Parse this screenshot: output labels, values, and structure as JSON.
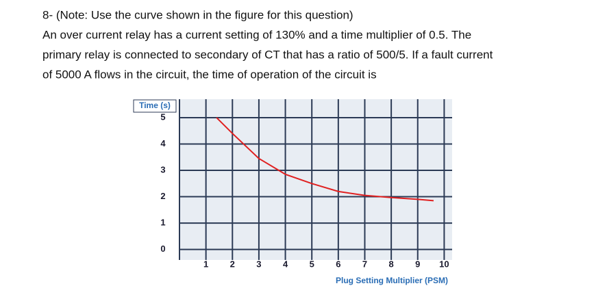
{
  "question": {
    "lines": [
      "8- (Note: Use the curve shown in the figure for this question)",
      "An over current relay has a current setting of 130% and a time multiplier of 0.5. The",
      "primary relay is connected to secondary of CT that has a ratio of 500/5. If a fault current",
      "of 5000 A flows in the circuit, the time of operation of the circuit is"
    ]
  },
  "chart_data": {
    "type": "line",
    "y_label": "Time (s)",
    "x_label": "Plug Setting Multiplier (PSM)",
    "x": [
      1.4,
      2,
      3,
      4,
      5,
      6,
      7,
      8,
      9,
      9.6
    ],
    "series": [
      {
        "color": "#e02020",
        "values": [
          5,
          4.4,
          3.45,
          2.85,
          2.5,
          2.2,
          2.05,
          1.97,
          1.9,
          1.85
        ]
      }
    ],
    "xlim": [
      0,
      10.3
    ],
    "ylim": [
      -0.4,
      5.7
    ],
    "xticks": [
      1,
      2,
      3,
      4,
      5,
      6,
      7,
      8,
      9,
      10
    ],
    "yticks": [
      0,
      1,
      2,
      3,
      4,
      5
    ],
    "grid": true
  }
}
